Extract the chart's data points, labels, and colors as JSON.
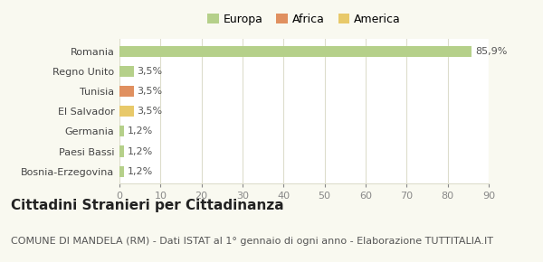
{
  "categories": [
    "Bosnia-Erzegovina",
    "Paesi Bassi",
    "Germania",
    "El Salvador",
    "Tunisia",
    "Regno Unito",
    "Romania"
  ],
  "values": [
    1.2,
    1.2,
    1.2,
    3.5,
    3.5,
    3.5,
    85.9
  ],
  "colors": [
    "#b5d08a",
    "#b5d08a",
    "#b5d08a",
    "#e8c96a",
    "#e09060",
    "#b5d08a",
    "#b5d08a"
  ],
  "labels": [
    "1,2%",
    "1,2%",
    "1,2%",
    "3,5%",
    "3,5%",
    "3,5%",
    "85,9%"
  ],
  "legend": [
    {
      "label": "Europa",
      "color": "#b5d08a"
    },
    {
      "label": "Africa",
      "color": "#e09060"
    },
    {
      "label": "America",
      "color": "#e8c96a"
    }
  ],
  "title": "Cittadini Stranieri per Cittadinanza",
  "subtitle": "COMUNE DI MANDELA (RM) - Dati ISTAT al 1° gennaio di ogni anno - Elaborazione TUTTITALIA.IT",
  "xlim": [
    0,
    90
  ],
  "xticks": [
    0,
    10,
    20,
    30,
    40,
    50,
    60,
    70,
    80,
    90
  ],
  "background_color": "#f9f9f0",
  "bar_background": "#ffffff",
  "grid_color": "#ddddcc",
  "title_fontsize": 11,
  "subtitle_fontsize": 8,
  "label_fontsize": 8,
  "tick_fontsize": 8
}
